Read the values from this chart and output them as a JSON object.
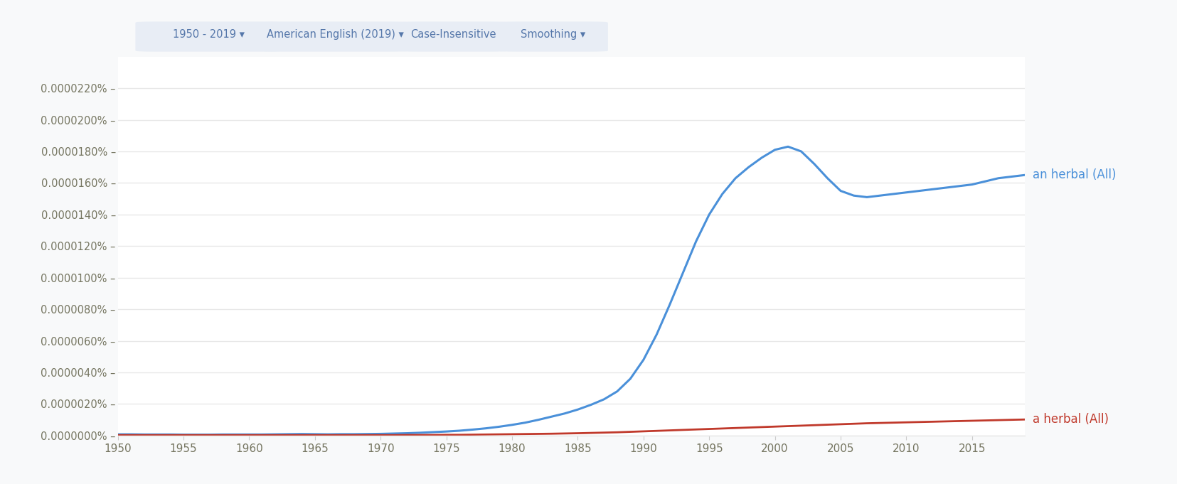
{
  "xlim": [
    1950,
    2019
  ],
  "ylim": [
    0,
    2.4e-07
  ],
  "yticks": [
    0,
    2e-08,
    4e-08,
    6e-08,
    8e-08,
    1e-07,
    1.2e-07,
    1.4e-07,
    1.6e-07,
    1.8e-07,
    2e-07,
    2.2e-07
  ],
  "ytick_labels": [
    "0.0000000%",
    "0.0000020%",
    "0.0000040%",
    "0.0000060%",
    "0.0000080%",
    "0.0000100%",
    "0.0000120%",
    "0.0000140%",
    "0.0000160%",
    "0.0000180%",
    "0.0000200%",
    "0.0000220%"
  ],
  "xticks": [
    1950,
    1955,
    1960,
    1965,
    1970,
    1975,
    1980,
    1985,
    1990,
    1995,
    2000,
    2005,
    2010,
    2015
  ],
  "line1_label": "an herbal (All)",
  "line1_color": "#4a90d9",
  "line2_label": "a herbal (All)",
  "line2_color": "#c0392b",
  "background_color": "#f8f9fa",
  "plot_bg_color": "#ffffff",
  "grid_color": "#e8e8e8",
  "tick_label_color": "#757560",
  "figsize": [
    16.56,
    6.81
  ],
  "dpi": 100,
  "ui_buttons": [
    "1950 - 2019 ▾",
    "American English (2019) ▾",
    "Case-Insensitive",
    "Smoothing ▾"
  ],
  "ui_bg": "#e8edf5",
  "ui_text_color": "#5577aa",
  "an_herbal_years": [
    1950,
    1951,
    1952,
    1953,
    1954,
    1955,
    1956,
    1957,
    1958,
    1959,
    1960,
    1961,
    1962,
    1963,
    1964,
    1965,
    1966,
    1967,
    1968,
    1969,
    1970,
    1971,
    1972,
    1973,
    1974,
    1975,
    1976,
    1977,
    1978,
    1979,
    1980,
    1981,
    1982,
    1983,
    1984,
    1985,
    1986,
    1987,
    1988,
    1989,
    1990,
    1991,
    1992,
    1993,
    1994,
    1995,
    1996,
    1997,
    1998,
    1999,
    2000,
    2001,
    2002,
    2003,
    2004,
    2005,
    2006,
    2007,
    2008,
    2009,
    2010,
    2011,
    2012,
    2013,
    2014,
    2015,
    2016,
    2017,
    2018,
    2019
  ],
  "an_herbal_values": [
    8e-10,
    8e-10,
    7e-10,
    7e-10,
    7e-10,
    6e-10,
    6e-10,
    6e-10,
    7e-10,
    7e-10,
    7e-10,
    7e-10,
    8e-10,
    9e-10,
    1e-09,
    9e-10,
    8e-10,
    9e-10,
    9e-10,
    1e-09,
    1.1e-09,
    1.3e-09,
    1.5e-09,
    1.8e-09,
    2.2e-09,
    2.6e-09,
    3.1e-09,
    3.8e-09,
    4.6e-09,
    5.6e-09,
    6.8e-09,
    8.2e-09,
    1e-08,
    1.2e-08,
    1.4e-08,
    1.65e-08,
    1.95e-08,
    2.3e-08,
    2.8e-08,
    3.6e-08,
    4.8e-08,
    6.4e-08,
    8.3e-08,
    1.03e-07,
    1.23e-07,
    1.4e-07,
    1.53e-07,
    1.63e-07,
    1.7e-07,
    1.76e-07,
    1.81e-07,
    1.83e-07,
    1.8e-07,
    1.72e-07,
    1.63e-07,
    1.55e-07,
    1.52e-07,
    1.51e-07,
    1.52e-07,
    1.53e-07,
    1.54e-07,
    1.55e-07,
    1.56e-07,
    1.57e-07,
    1.58e-07,
    1.59e-07,
    1.61e-07,
    1.63e-07,
    1.64e-07,
    1.65e-07
  ],
  "a_herbal_years": [
    1950,
    1951,
    1952,
    1953,
    1954,
    1955,
    1956,
    1957,
    1958,
    1959,
    1960,
    1961,
    1962,
    1963,
    1964,
    1965,
    1966,
    1967,
    1968,
    1969,
    1970,
    1971,
    1972,
    1973,
    1974,
    1975,
    1976,
    1977,
    1978,
    1979,
    1980,
    1981,
    1982,
    1983,
    1984,
    1985,
    1986,
    1987,
    1988,
    1989,
    1990,
    1991,
    1992,
    1993,
    1994,
    1995,
    1996,
    1997,
    1998,
    1999,
    2000,
    2001,
    2002,
    2003,
    2004,
    2005,
    2006,
    2007,
    2008,
    2009,
    2010,
    2011,
    2012,
    2013,
    2014,
    2015,
    2016,
    2017,
    2018,
    2019
  ],
  "a_herbal_values": [
    3e-10,
    3e-10,
    3e-10,
    3e-10,
    3e-10,
    3e-10,
    3e-10,
    3e-10,
    3e-10,
    3e-10,
    3e-10,
    3e-10,
    3e-10,
    3e-10,
    3e-10,
    3e-10,
    3e-10,
    3e-10,
    3e-10,
    3e-10,
    3e-10,
    3e-10,
    4e-10,
    4e-10,
    4e-10,
    5e-10,
    5e-10,
    6e-10,
    7e-10,
    8e-10,
    9e-10,
    1e-09,
    1.1e-09,
    1.2e-09,
    1.35e-09,
    1.5e-09,
    1.7e-09,
    1.9e-09,
    2.1e-09,
    2.4e-09,
    2.7e-09,
    3e-09,
    3.3e-09,
    3.6e-09,
    3.9e-09,
    4.2e-09,
    4.5e-09,
    4.8e-09,
    5.1e-09,
    5.4e-09,
    5.7e-09,
    6e-09,
    6.3e-09,
    6.6e-09,
    6.9e-09,
    7.2e-09,
    7.5e-09,
    7.8e-09,
    8e-09,
    8.2e-09,
    8.4e-09,
    8.6e-09,
    8.8e-09,
    9e-09,
    9.2e-09,
    9.4e-09,
    9.6e-09,
    9.8e-09,
    1e-08,
    1.02e-08
  ]
}
